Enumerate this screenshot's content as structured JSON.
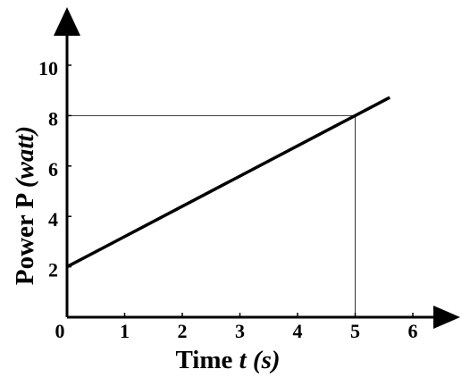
{
  "chart_data": {
    "type": "line",
    "xlabel": [
      "Time",
      "t",
      "(s)"
    ],
    "ylabel": [
      "Power P",
      "(watt)"
    ],
    "x": [
      0,
      5.6
    ],
    "series": [
      {
        "color": "#000000",
        "values": [
          2,
          8.72
        ]
      }
    ],
    "guide": {
      "x": 5,
      "y": 8
    },
    "xlim": [
      0,
      6.8
    ],
    "ylim": [
      0,
      12
    ],
    "xticks": [
      0,
      1,
      2,
      3,
      4,
      5,
      6
    ],
    "yticks": [
      2,
      4,
      6,
      8,
      10
    ]
  }
}
